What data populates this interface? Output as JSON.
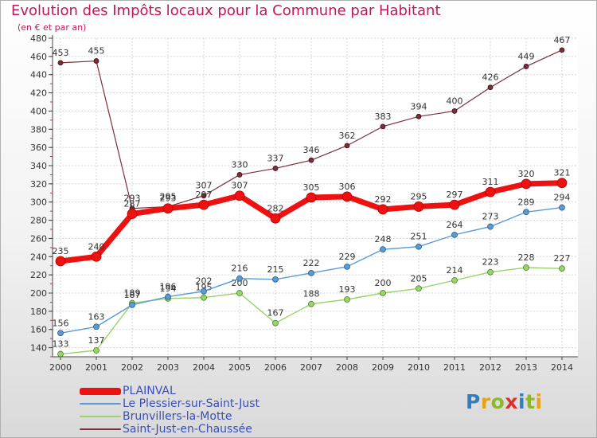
{
  "title": "Evolution des Impôts locaux pour la Commune par Habitant",
  "subtitle": "(en € et par an)",
  "logo": {
    "text": "Proxiti",
    "letter_colors": [
      "#2f7fc1",
      "#e8a21a",
      "#8cb82b",
      "#d8322a",
      "#2f7fc1",
      "#8cb82b",
      "#e8a21a"
    ]
  },
  "chart_data": {
    "type": "line",
    "x": [
      "2000",
      "2001",
      "2002",
      "2003",
      "2004",
      "2005",
      "2006",
      "2007",
      "2008",
      "2009",
      "2010",
      "2011",
      "2012",
      "2013",
      "2014"
    ],
    "ylim": [
      130,
      480
    ],
    "yticks": [
      140,
      160,
      180,
      200,
      220,
      240,
      260,
      280,
      300,
      320,
      340,
      360,
      380,
      400,
      420,
      440,
      460,
      480
    ],
    "grid": true,
    "legend_position": "bottom-left",
    "series": [
      {
        "name": "PLAINVAL",
        "color": "#ee1111",
        "values": [
          235,
          240,
          287,
          293,
          297,
          307,
          282,
          305,
          306,
          292,
          295,
          297,
          311,
          320,
          321
        ]
      },
      {
        "name": "Le Plessier-sur-Saint-Just",
        "color": "#5b9bd5",
        "values": [
          156,
          163,
          187,
          196,
          202,
          216,
          215,
          222,
          229,
          248,
          251,
          264,
          273,
          289,
          294
        ]
      },
      {
        "name": "Brunvillers-la-Motte",
        "color": "#98d36c",
        "values": [
          133,
          137,
          189,
          194,
          195,
          200,
          167,
          188,
          193,
          200,
          205,
          214,
          223,
          228,
          227
        ]
      },
      {
        "name": "Saint-Just-en-Chaussée",
        "color": "#7b2f3b",
        "values": [
          453,
          455,
          293,
          295,
          307,
          330,
          337,
          346,
          362,
          383,
          394,
          400,
          426,
          449,
          467
        ]
      }
    ]
  }
}
